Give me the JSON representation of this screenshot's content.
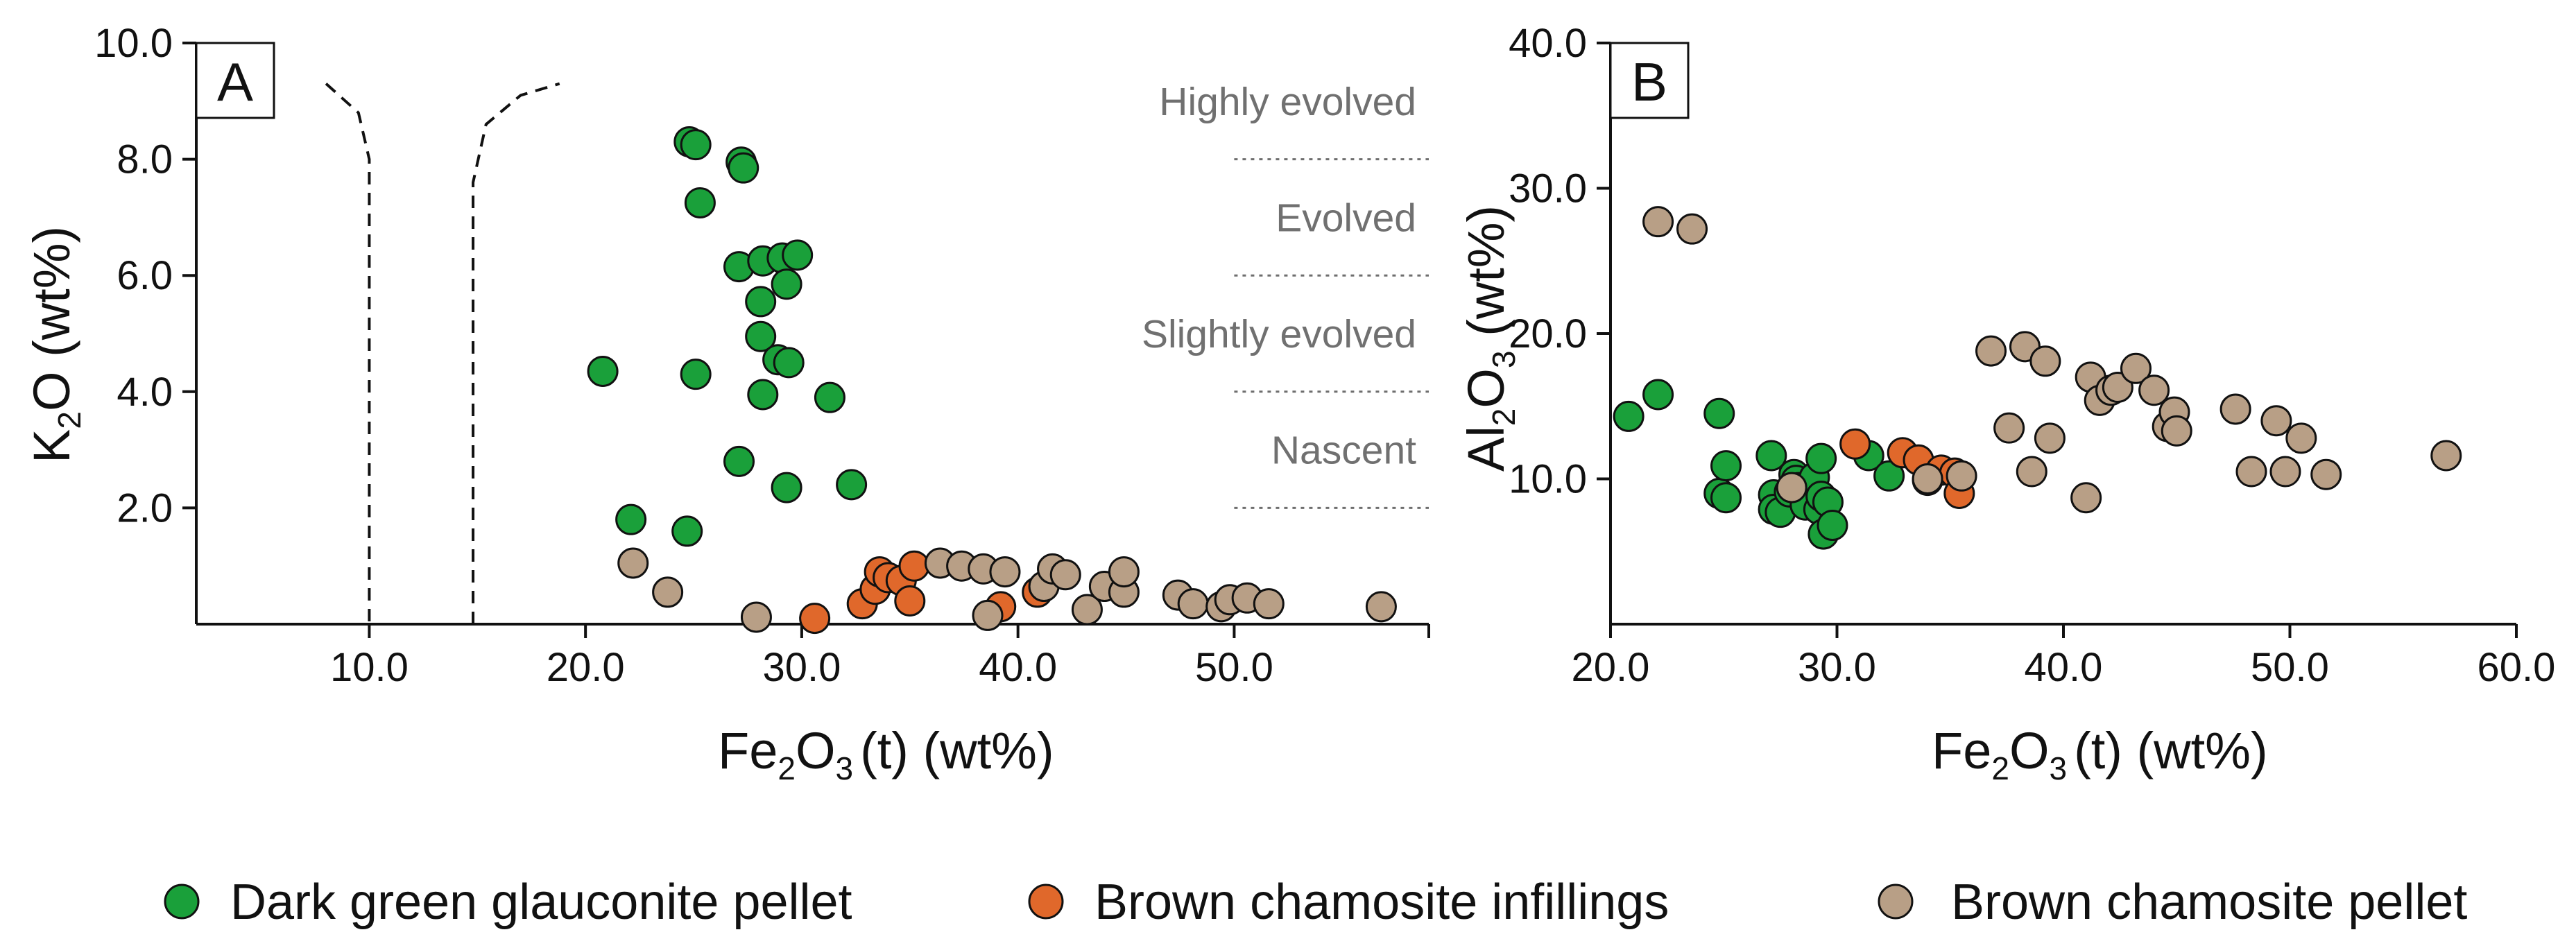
{
  "colors": {
    "glauconite": "#1aa03a",
    "chamosite_infill": "#e0682b",
    "chamosite_pellet": "#b89f86",
    "zone_text": "#707070"
  },
  "legend": {
    "items": [
      {
        "key": "glauconite",
        "label": "Dark green glauconite pellet"
      },
      {
        "key": "chamosite_infill",
        "label": "Brown chamosite infillings"
      },
      {
        "key": "chamosite_pellet",
        "label": "Brown chamosite pellet"
      }
    ]
  },
  "chart_data": [
    {
      "id": "A",
      "type": "scatter",
      "panel_label": "A",
      "xlabel": {
        "base": "Fe",
        "sub": "2",
        "mid": "O",
        "sub2": "3",
        "suffix": "(t) (wt%)"
      },
      "ylabel": {
        "base": "K",
        "sub": "2",
        "suffix": "O (wt%)"
      },
      "xlim": [
        2,
        59
      ],
      "ylim": [
        0,
        10
      ],
      "x_ticks": [
        10,
        20,
        30,
        40,
        50
      ],
      "x_tick_labels": [
        "10.0",
        "20.0",
        "30.0",
        "40.0",
        "50.0"
      ],
      "y_ticks": [
        2,
        4,
        6,
        8,
        10
      ],
      "y_tick_labels": [
        "2.0",
        "4.0",
        "6.0",
        "8.0",
        "10.0"
      ],
      "zones": [
        {
          "label": "Highly evolved",
          "y_text": 9.0
        },
        {
          "label": "Evolved",
          "y_text": 7.0
        },
        {
          "label": "Slightly evolved",
          "y_text": 5.0
        },
        {
          "label": "Nascent",
          "y_text": 3.0
        }
      ],
      "zone_lines_y": [
        8,
        6,
        4,
        2
      ],
      "zone_lines_x": [
        50,
        59
      ],
      "curves": [
        {
          "points": [
            [
              8,
              9.3
            ],
            [
              9.5,
              8.8
            ],
            [
              10,
              8.0
            ],
            [
              10,
              0
            ]
          ]
        },
        {
          "points": [
            [
              14.8,
              0
            ],
            [
              14.8,
              7.6
            ],
            [
              15.4,
              8.6
            ],
            [
              17,
              9.1
            ],
            [
              18.8,
              9.3
            ]
          ]
        }
      ],
      "series": [
        {
          "name": "Dark green glauconite pellet",
          "key": "glauconite",
          "points": [
            [
              20.8,
              4.35
            ],
            [
              22.1,
              1.8
            ],
            [
              24.7,
              1.6
            ],
            [
              24.8,
              8.3
            ],
            [
              25.1,
              8.25
            ],
            [
              25.1,
              4.3
            ],
            [
              25.3,
              7.25
            ],
            [
              27.1,
              2.8
            ],
            [
              27.1,
              6.15
            ],
            [
              27.2,
              7.95
            ],
            [
              27.3,
              7.85
            ],
            [
              28.1,
              5.55
            ],
            [
              28.1,
              4.95
            ],
            [
              28.2,
              3.95
            ],
            [
              28.2,
              6.25
            ],
            [
              28.9,
              4.55
            ],
            [
              29.1,
              6.3
            ],
            [
              29.3,
              2.35
            ],
            [
              29.3,
              5.85
            ],
            [
              29.4,
              4.5
            ],
            [
              29.8,
              6.35
            ],
            [
              31.3,
              3.9
            ],
            [
              32.3,
              2.4
            ]
          ]
        },
        {
          "name": "Brown chamosite infillings",
          "key": "chamosite_infill",
          "points": [
            [
              30.6,
              0.1
            ],
            [
              32.8,
              0.35
            ],
            [
              33.4,
              0.6
            ],
            [
              33.6,
              0.9
            ],
            [
              34.0,
              0.8
            ],
            [
              34.6,
              0.75
            ],
            [
              35.0,
              0.4
            ],
            [
              35.2,
              1.0
            ],
            [
              39.2,
              0.3
            ],
            [
              40.9,
              0.55
            ]
          ]
        },
        {
          "name": "Brown chamosite pellet",
          "key": "chamosite_pellet",
          "points": [
            [
              22.2,
              1.05
            ],
            [
              23.8,
              0.55
            ],
            [
              27.9,
              0.12
            ],
            [
              36.4,
              1.05
            ],
            [
              37.4,
              1.0
            ],
            [
              38.4,
              0.95
            ],
            [
              38.6,
              0.15
            ],
            [
              39.4,
              0.9
            ],
            [
              41.2,
              0.65
            ],
            [
              41.6,
              0.95
            ],
            [
              42.2,
              0.85
            ],
            [
              43.2,
              0.25
            ],
            [
              44.0,
              0.65
            ],
            [
              44.9,
              0.55
            ],
            [
              44.9,
              0.9
            ],
            [
              47.4,
              0.5
            ],
            [
              48.1,
              0.35
            ],
            [
              49.4,
              0.3
            ],
            [
              49.8,
              0.42
            ],
            [
              50.6,
              0.45
            ],
            [
              51.6,
              0.35
            ],
            [
              56.8,
              0.3
            ]
          ]
        }
      ]
    },
    {
      "id": "B",
      "type": "scatter",
      "panel_label": "B",
      "xlabel": {
        "base": "Fe",
        "sub": "2",
        "mid": "O",
        "sub2": "3",
        "suffix": "(t) (wt%)"
      },
      "ylabel": {
        "base": "Al",
        "sub": "2",
        "mid": "O",
        "sub2": "3",
        "suffix": " (wt%)"
      },
      "xlim": [
        20,
        60
      ],
      "ylim": [
        0,
        40
      ],
      "x_ticks": [
        20,
        30,
        40,
        50,
        60
      ],
      "x_tick_labels": [
        "20.0",
        "30.0",
        "40.0",
        "50.0",
        "60.0"
      ],
      "y_ticks": [
        10,
        20,
        30,
        40
      ],
      "y_tick_labels": [
        "10.0",
        "20.0",
        "30.0",
        "40.0"
      ],
      "series": [
        {
          "name": "Dark green glauconite pellet",
          "key": "glauconite",
          "points": [
            [
              20.8,
              14.3
            ],
            [
              22.1,
              15.8
            ],
            [
              24.8,
              14.5
            ],
            [
              24.8,
              9.0
            ],
            [
              25.1,
              10.9
            ],
            [
              25.1,
              8.7
            ],
            [
              27.1,
              11.6
            ],
            [
              27.2,
              8.9
            ],
            [
              27.2,
              7.9
            ],
            [
              27.5,
              7.7
            ],
            [
              27.9,
              9.1
            ],
            [
              28.1,
              10.3
            ],
            [
              28.2,
              9.9
            ],
            [
              28.3,
              9.4
            ],
            [
              28.6,
              8.2
            ],
            [
              29.0,
              10.1
            ],
            [
              29.2,
              7.9
            ],
            [
              29.3,
              11.4
            ],
            [
              29.3,
              8.8
            ],
            [
              29.4,
              6.2
            ],
            [
              29.6,
              8.4
            ],
            [
              29.8,
              6.8
            ],
            [
              31.4,
              11.6
            ],
            [
              32.3,
              10.2
            ]
          ]
        },
        {
          "name": "Brown chamosite infillings",
          "key": "chamosite_infill",
          "points": [
            [
              30.8,
              12.4
            ],
            [
              32.9,
              11.8
            ],
            [
              33.6,
              11.3
            ],
            [
              34.0,
              9.9
            ],
            [
              34.6,
              10.6
            ],
            [
              35.2,
              10.4
            ],
            [
              35.4,
              9.0
            ]
          ]
        },
        {
          "name": "Brown chamosite pellet",
          "key": "chamosite_pellet",
          "points": [
            [
              22.1,
              27.7
            ],
            [
              23.6,
              27.2
            ],
            [
              28.0,
              9.4
            ],
            [
              34.0,
              10.0
            ],
            [
              35.5,
              10.2
            ],
            [
              36.8,
              18.8
            ],
            [
              37.6,
              13.5
            ],
            [
              38.3,
              19.1
            ],
            [
              38.6,
              10.5
            ],
            [
              39.2,
              18.1
            ],
            [
              39.4,
              12.8
            ],
            [
              41.0,
              8.7
            ],
            [
              41.2,
              17.0
            ],
            [
              41.6,
              15.4
            ],
            [
              42.1,
              16.1
            ],
            [
              42.4,
              16.3
            ],
            [
              43.2,
              17.6
            ],
            [
              44.0,
              16.1
            ],
            [
              44.6,
              13.6
            ],
            [
              44.9,
              14.6
            ],
            [
              45.0,
              13.3
            ],
            [
              47.6,
              14.8
            ],
            [
              48.3,
              10.5
            ],
            [
              49.4,
              14.0
            ],
            [
              49.8,
              10.5
            ],
            [
              50.5,
              12.8
            ],
            [
              51.6,
              10.3
            ],
            [
              56.9,
              11.6
            ]
          ]
        }
      ]
    }
  ]
}
